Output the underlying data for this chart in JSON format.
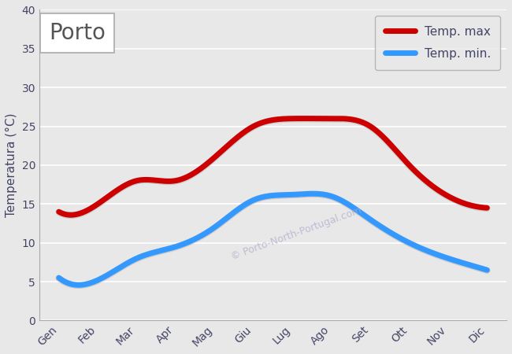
{
  "months": [
    "Gen",
    "Feb",
    "Mar",
    "Apr",
    "Mag",
    "Giu",
    "Lug",
    "Ago",
    "Set",
    "Ott",
    "Nov",
    "Dic"
  ],
  "temp_max": [
    14,
    15,
    18,
    18,
    21,
    25,
    26,
    26,
    25,
    20,
    16,
    14.5
  ],
  "temp_min": [
    5.5,
    5.2,
    8,
    9.5,
    12,
    15.5,
    16.2,
    16,
    13,
    10,
    8,
    6.5
  ],
  "color_max": "#cc0000",
  "color_min": "#3399ff",
  "line_width": 5,
  "ylabel": "Temperatura (°C)",
  "city_label": "Porto",
  "watermark": "© Porto-North-Portugal.com",
  "legend_max": "Temp. max",
  "legend_min": "Temp. min.",
  "ylim": [
    0,
    40
  ],
  "yticks": [
    0,
    5,
    10,
    15,
    20,
    25,
    30,
    35,
    40
  ],
  "bg_color": "#e8e8e8",
  "grid_color": "#ffffff",
  "shadow_color": "#444444"
}
